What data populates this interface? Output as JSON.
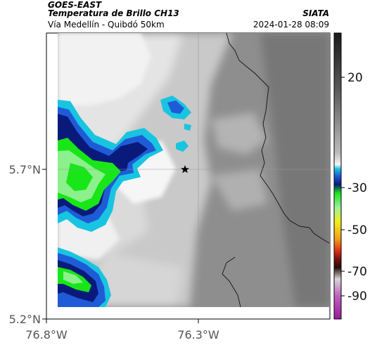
{
  "header": {
    "satellite": "GOES-EAST",
    "product": "Temperatura de Brillo CH13",
    "place": "Vía Medellín - Quibdó 50km",
    "org": "SIATA",
    "datetime": "2024-01-28 08:09"
  },
  "axes": {
    "lon_ticks": [
      "76.8°W",
      "76.3°W"
    ],
    "lat_ticks": [
      "5.7°N",
      "5.2°N"
    ]
  },
  "colorbar": {
    "labels": [
      "20",
      "-30",
      "-50",
      "-70",
      "-90"
    ]
  },
  "colors": {
    "deep_blue": "#0a1a7a",
    "blue": "#1f5bd6",
    "cyan": "#19c4e0",
    "green": "#19e619",
    "light_green": "#8cf08c"
  },
  "marker": {
    "icon": "star-icon"
  }
}
